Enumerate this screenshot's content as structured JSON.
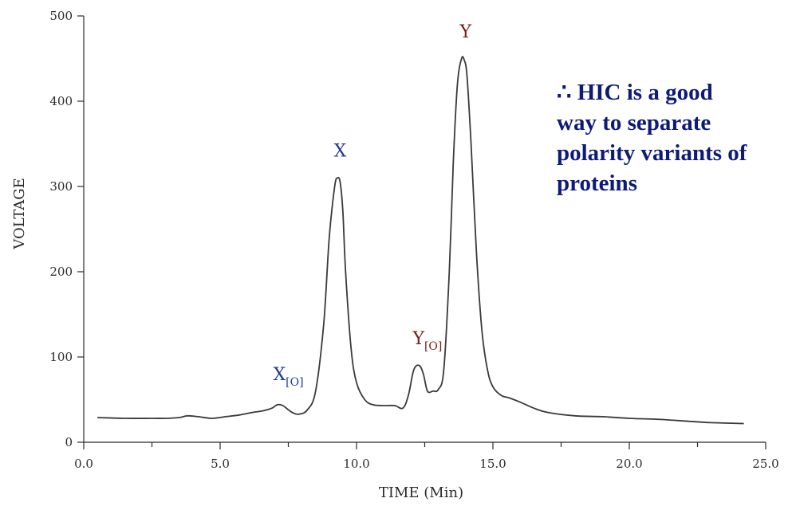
{
  "annotation": {
    "lines": [
      "∴ HIC is a good",
      "way to separate",
      "polarity variants of",
      "proteins"
    ],
    "color": "#0d1a78"
  },
  "chart_data": {
    "type": "line",
    "xlabel": "TIME (Min)",
    "ylabel": "VOLTAGE",
    "xlim": [
      0,
      25
    ],
    "ylim": [
      0,
      500
    ],
    "x_ticks": [
      "0.0",
      "5.0",
      "10.0",
      "15.0",
      "20.0",
      "25.0"
    ],
    "y_ticks": [
      "0",
      "100",
      "200",
      "300",
      "400",
      "500"
    ],
    "grid": false,
    "legend": "none",
    "line_color": "#3a3a3a",
    "series": [
      {
        "x": [
          0.5,
          1.5,
          2.5,
          3.0,
          3.5,
          3.8,
          4.2,
          4.7,
          5.2,
          5.7,
          6.2,
          6.6,
          6.9,
          7.1,
          7.3,
          7.5,
          7.7,
          7.9,
          8.2,
          8.5,
          8.8,
          9.0,
          9.2,
          9.3,
          9.4,
          9.5,
          9.6,
          9.8,
          10.0,
          10.3,
          10.6,
          11.0,
          11.4,
          11.7,
          11.9,
          12.1,
          12.3,
          12.45,
          12.6,
          12.8,
          13.0,
          13.2,
          13.4,
          13.55,
          13.7,
          13.85,
          13.95,
          14.05,
          14.2,
          14.4,
          14.6,
          14.8,
          15.0,
          15.3,
          15.6,
          16.0,
          16.5,
          17.0,
          18.0,
          19.0,
          20.0,
          21.0,
          22.0,
          23.0,
          24.2
        ],
        "y": [
          29,
          28,
          28,
          28,
          29,
          31,
          30,
          28,
          30,
          32,
          35,
          37,
          40,
          44,
          43,
          38,
          34,
          33,
          38,
          60,
          140,
          240,
          300,
          310,
          305,
          270,
          200,
          110,
          70,
          50,
          44,
          43,
          43,
          40,
          55,
          85,
          90,
          80,
          60,
          60,
          62,
          85,
          200,
          330,
          420,
          450,
          448,
          430,
          350,
          220,
          130,
          85,
          65,
          55,
          52,
          47,
          40,
          35,
          31,
          30,
          28,
          27,
          25,
          23,
          22
        ]
      }
    ],
    "peak_labels": [
      {
        "text": "X",
        "sub": "[O]",
        "x": 7.5,
        "y": 73,
        "color": "#1f3c8c"
      },
      {
        "text": "X",
        "sub": "",
        "x": 9.4,
        "y": 335,
        "color": "#1f3c8c"
      },
      {
        "text": "Y",
        "sub": "[O]",
        "x": 12.6,
        "y": 115,
        "color": "#7a1a1a"
      },
      {
        "text": "Y",
        "sub": "",
        "x": 14.0,
        "y": 475,
        "color": "#7a1a1a"
      }
    ]
  }
}
